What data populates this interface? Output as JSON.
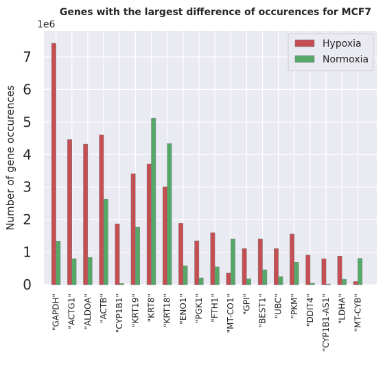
{
  "chart_data": {
    "type": "bar",
    "title": "Genes with the largest difference of occurences for MCF7",
    "ylabel": "Number of gene occurences",
    "xlabel": "",
    "y_offset_label": "1e6",
    "ylim": [
      0,
      7.8
    ],
    "yticks": [
      "0",
      "1",
      "2",
      "3",
      "4",
      "5",
      "6",
      "7"
    ],
    "grid": true,
    "legend_position": "top-right",
    "categories": [
      "\"GAPDH\"",
      "\"ACTG1\"",
      "\"ALDOA\"",
      "\"ACTB\"",
      "\"CYP1B1\"",
      "\"KRT19\"",
      "\"KRT8\"",
      "\"KRT18\"",
      "\"ENO1\"",
      "\"PGK1\"",
      "\"FTH1\"",
      "\"MT-CO1\"",
      "\"GPI\"",
      "\"BEST1\"",
      "\"UBC\"",
      "\"PKM\"",
      "\"DDIT4\"",
      "\"CYP1B1-AS1\"",
      "\"LDHA\"",
      "\"MT-CYB\""
    ],
    "series": [
      {
        "name": "Hypoxia",
        "color": "#c44e52",
        "values": [
          7.42,
          4.46,
          4.32,
          4.6,
          1.87,
          3.41,
          3.71,
          3.01,
          1.89,
          1.35,
          1.6,
          0.36,
          1.11,
          1.41,
          1.11,
          1.56,
          0.91,
          0.8,
          0.88,
          0.1
        ]
      },
      {
        "name": "Normoxia",
        "color": "#55a868",
        "values": [
          1.34,
          0.8,
          0.84,
          2.63,
          0.04,
          1.77,
          5.12,
          4.34,
          0.58,
          0.21,
          0.55,
          1.41,
          0.18,
          0.46,
          0.25,
          0.69,
          0.05,
          0.02,
          0.17,
          0.81
        ]
      }
    ]
  }
}
